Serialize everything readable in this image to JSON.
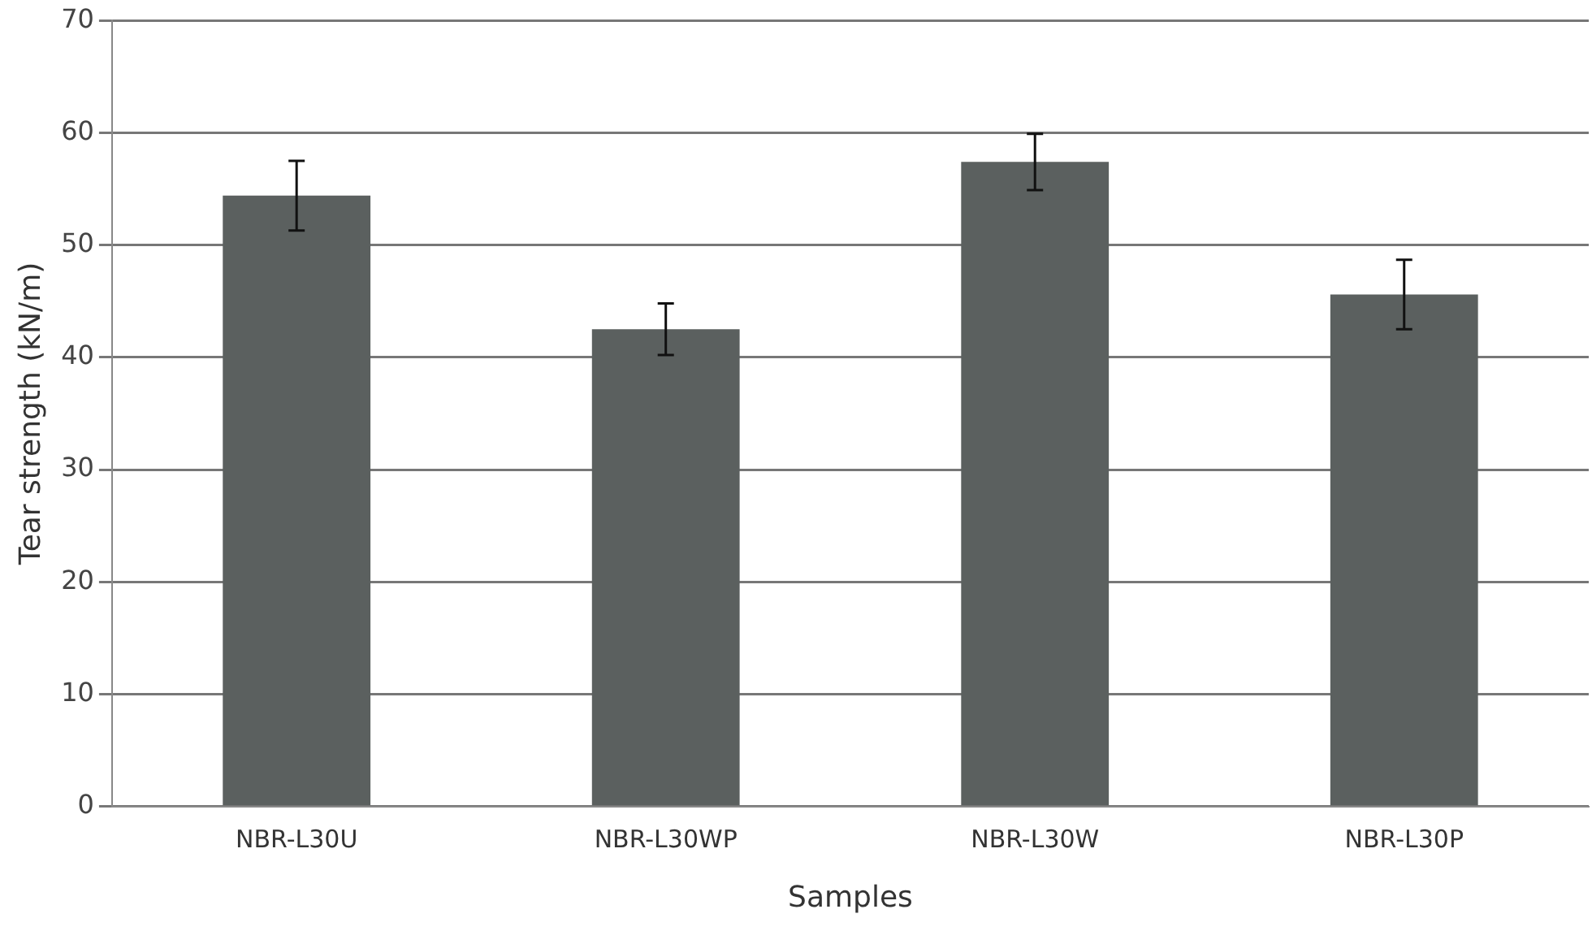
{
  "chart_data": {
    "type": "bar",
    "xlabel": "Samples",
    "ylabel": "Tear strength (kN/m)",
    "categories": [
      "NBR-L30U",
      "NBR-L30WP",
      "NBR-L30W",
      "NBR-L30P"
    ],
    "values": [
      54.4,
      42.5,
      57.4,
      45.6
    ],
    "errors": [
      3.1,
      2.3,
      2.5,
      3.1
    ],
    "color": "#5b605f",
    "ylim": [
      0,
      70
    ],
    "yticks": [
      0,
      10,
      20,
      30,
      40,
      50,
      60,
      70
    ],
    "grid": "y"
  }
}
